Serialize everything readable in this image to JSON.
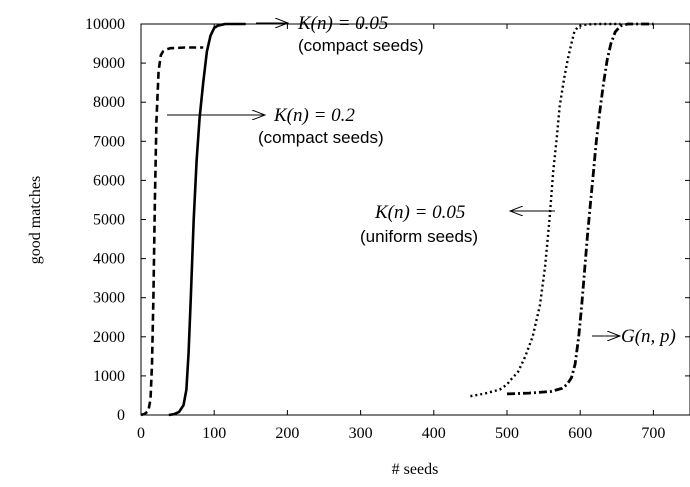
{
  "chart_data": {
    "type": "line",
    "xlabel": "# seeds",
    "ylabel": "good matches",
    "xlim": [
      0,
      750
    ],
    "ylim": [
      0,
      10000
    ],
    "x_ticks": [
      0,
      100,
      200,
      300,
      400,
      500,
      600,
      700
    ],
    "y_ticks": [
      0,
      1000,
      2000,
      3000,
      4000,
      5000,
      6000,
      7000,
      8000,
      9000,
      10000
    ],
    "grid": false,
    "series": [
      {
        "style": "dashed",
        "x": [
          0,
          5,
          10,
          13,
          15,
          17,
          19,
          21,
          24,
          27,
          30,
          35,
          40,
          50,
          60,
          75,
          85
        ],
        "y": [
          0,
          30,
          100,
          400,
          1300,
          3000,
          5500,
          7500,
          8800,
          9200,
          9300,
          9350,
          9380,
          9390,
          9400,
          9400,
          9400
        ]
      },
      {
        "style": "solid",
        "x": [
          38,
          45,
          52,
          58,
          62,
          65,
          68,
          72,
          76,
          80,
          85,
          90,
          95,
          100,
          105,
          110,
          115,
          120,
          130,
          143
        ],
        "y": [
          0,
          20,
          80,
          250,
          650,
          1600,
          3000,
          5000,
          6500,
          7600,
          8500,
          9300,
          9700,
          9900,
          9960,
          9980,
          10000,
          10000,
          10000,
          10000
        ]
      },
      {
        "style": "dotted",
        "x": [
          450,
          470,
          490,
          500,
          505,
          515,
          525,
          535,
          545,
          552,
          558,
          563,
          568,
          572,
          578,
          583,
          588,
          592,
          597,
          602,
          610,
          625,
          640,
          655
        ],
        "y": [
          480,
          550,
          650,
          780,
          900,
          1100,
          1500,
          2000,
          2800,
          3800,
          5000,
          6200,
          7100,
          7900,
          8600,
          9100,
          9500,
          9800,
          9930,
          9970,
          9990,
          10000,
          10000,
          10000
        ]
      },
      {
        "style": "dash-dot",
        "x": [
          500,
          530,
          560,
          575,
          582,
          588,
          593,
          598,
          602,
          606,
          610,
          614,
          618,
          622,
          627,
          632,
          637,
          642,
          648,
          655,
          665,
          680,
          700
        ],
        "y": [
          540,
          560,
          600,
          680,
          780,
          950,
          1300,
          2000,
          2800,
          3700,
          4600,
          5400,
          6200,
          7000,
          7800,
          8500,
          9100,
          9500,
          9800,
          9950,
          10000,
          10000,
          10000
        ]
      }
    ],
    "annotations": [
      {
        "math": "K(n) = 0.05",
        "sub": "(compact seeds)",
        "arrow": "from_curve"
      },
      {
        "math": "K(n) = 0.2",
        "sub": "(compact seeds)",
        "arrow": "from_curve"
      },
      {
        "math": "K(n) = 0.05",
        "sub": "(uniform seeds)",
        "arrow": "to_label"
      },
      {
        "math": "G(n, p)",
        "sub": "",
        "arrow": "from_curve"
      }
    ]
  }
}
